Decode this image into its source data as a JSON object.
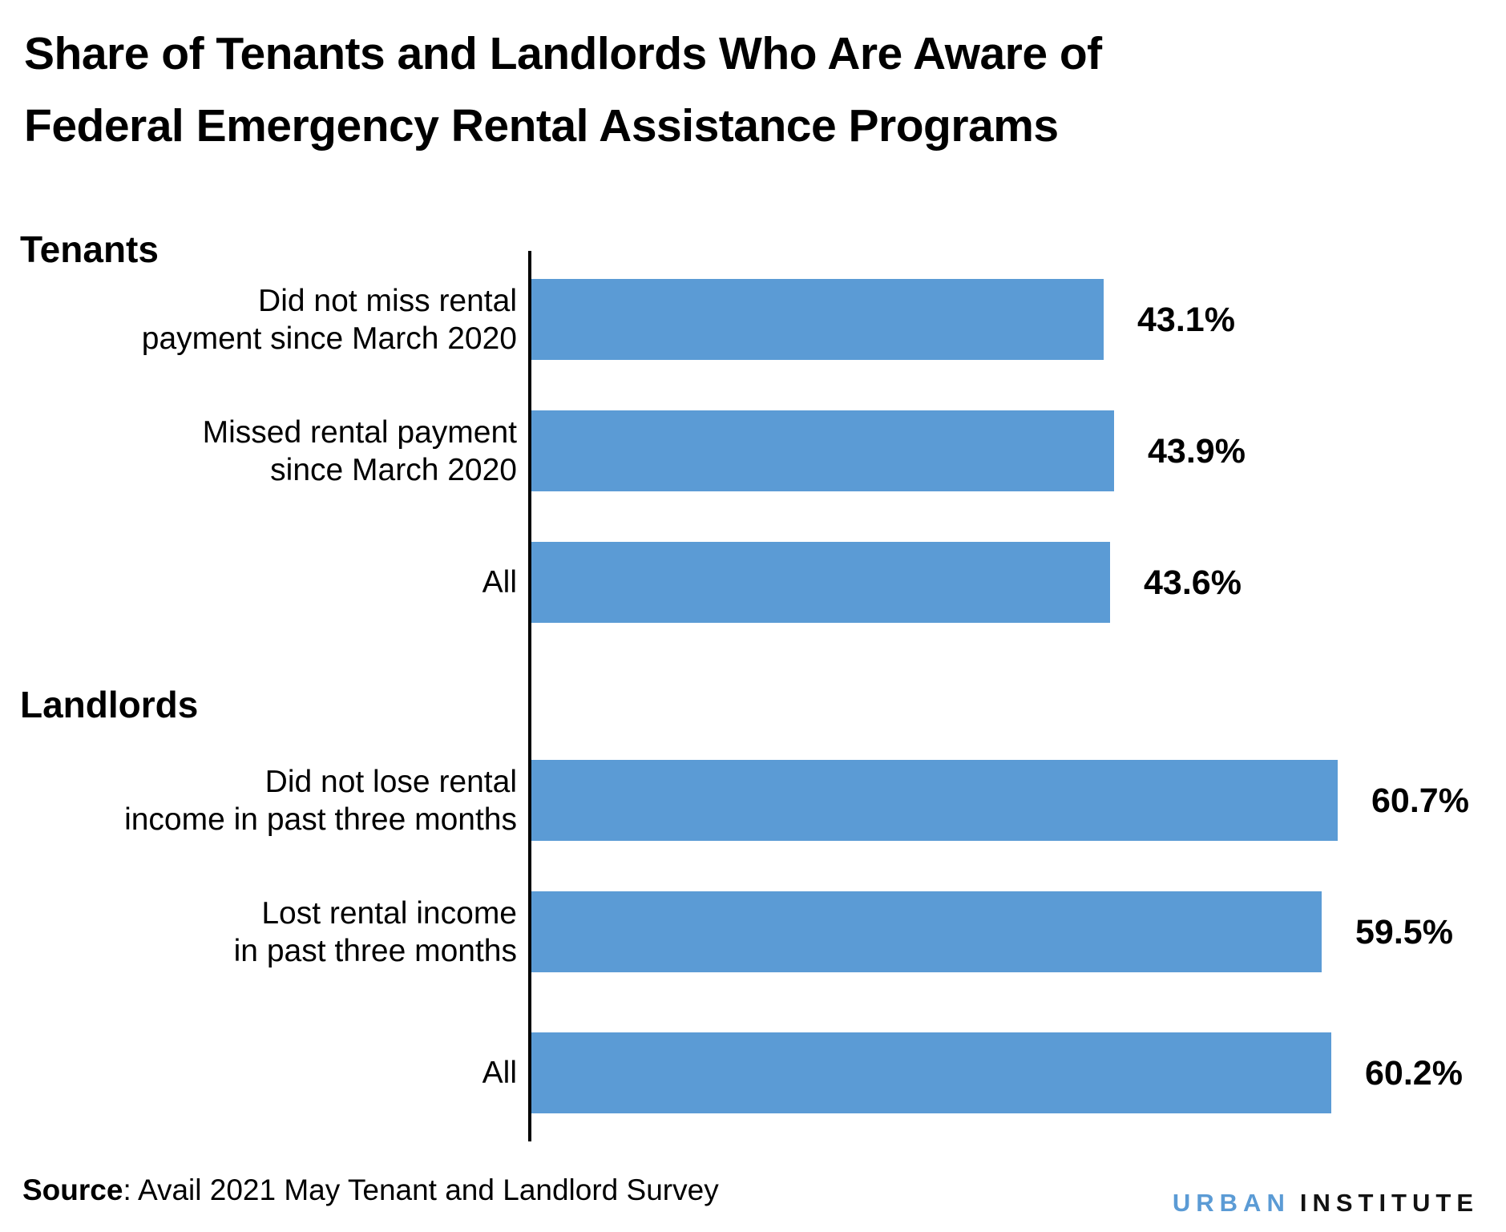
{
  "title": {
    "line1": "Share of Tenants and Landlords Who Are Aware of",
    "line2": "Federal Emergency Rental Assistance Programs"
  },
  "source": {
    "label": "Source",
    "rest": ": Avail 2021 May Tenant and Landlord Survey"
  },
  "logo": {
    "word1": "URBAN",
    "word2": "INSTITUTE"
  },
  "colors": {
    "bar": "#5B9BD5",
    "axis": "#000000",
    "logo_blue": "#5B9BD5",
    "text": "#000000"
  },
  "chart_data": {
    "type": "bar",
    "orientation": "horizontal",
    "title": "Share of Tenants and Landlords Who Are Aware of Federal Emergency Rental Assistance Programs",
    "value_unit": "percent",
    "xlim": [
      0,
      70
    ],
    "grid": false,
    "legend": false,
    "groups": [
      {
        "label": "Tenants",
        "bars": [
          {
            "label_lines": [
              "Did not miss rental",
              "payment since March 2020"
            ],
            "value": 43.1,
            "value_label": "43.1%"
          },
          {
            "label_lines": [
              "Missed rental payment",
              "since March 2020"
            ],
            "value": 43.9,
            "value_label": "43.9%"
          },
          {
            "label_lines": [
              "All"
            ],
            "value": 43.6,
            "value_label": "43.6%"
          }
        ]
      },
      {
        "label": "Landlords",
        "bars": [
          {
            "label_lines": [
              "Did not lose rental",
              "income in past three months"
            ],
            "value": 60.7,
            "value_label": "60.7%"
          },
          {
            "label_lines": [
              "Lost rental income",
              "in past three months"
            ],
            "value": 59.5,
            "value_label": "59.5%"
          },
          {
            "label_lines": [
              "All"
            ],
            "value": 60.2,
            "value_label": "60.2%"
          }
        ]
      }
    ]
  }
}
